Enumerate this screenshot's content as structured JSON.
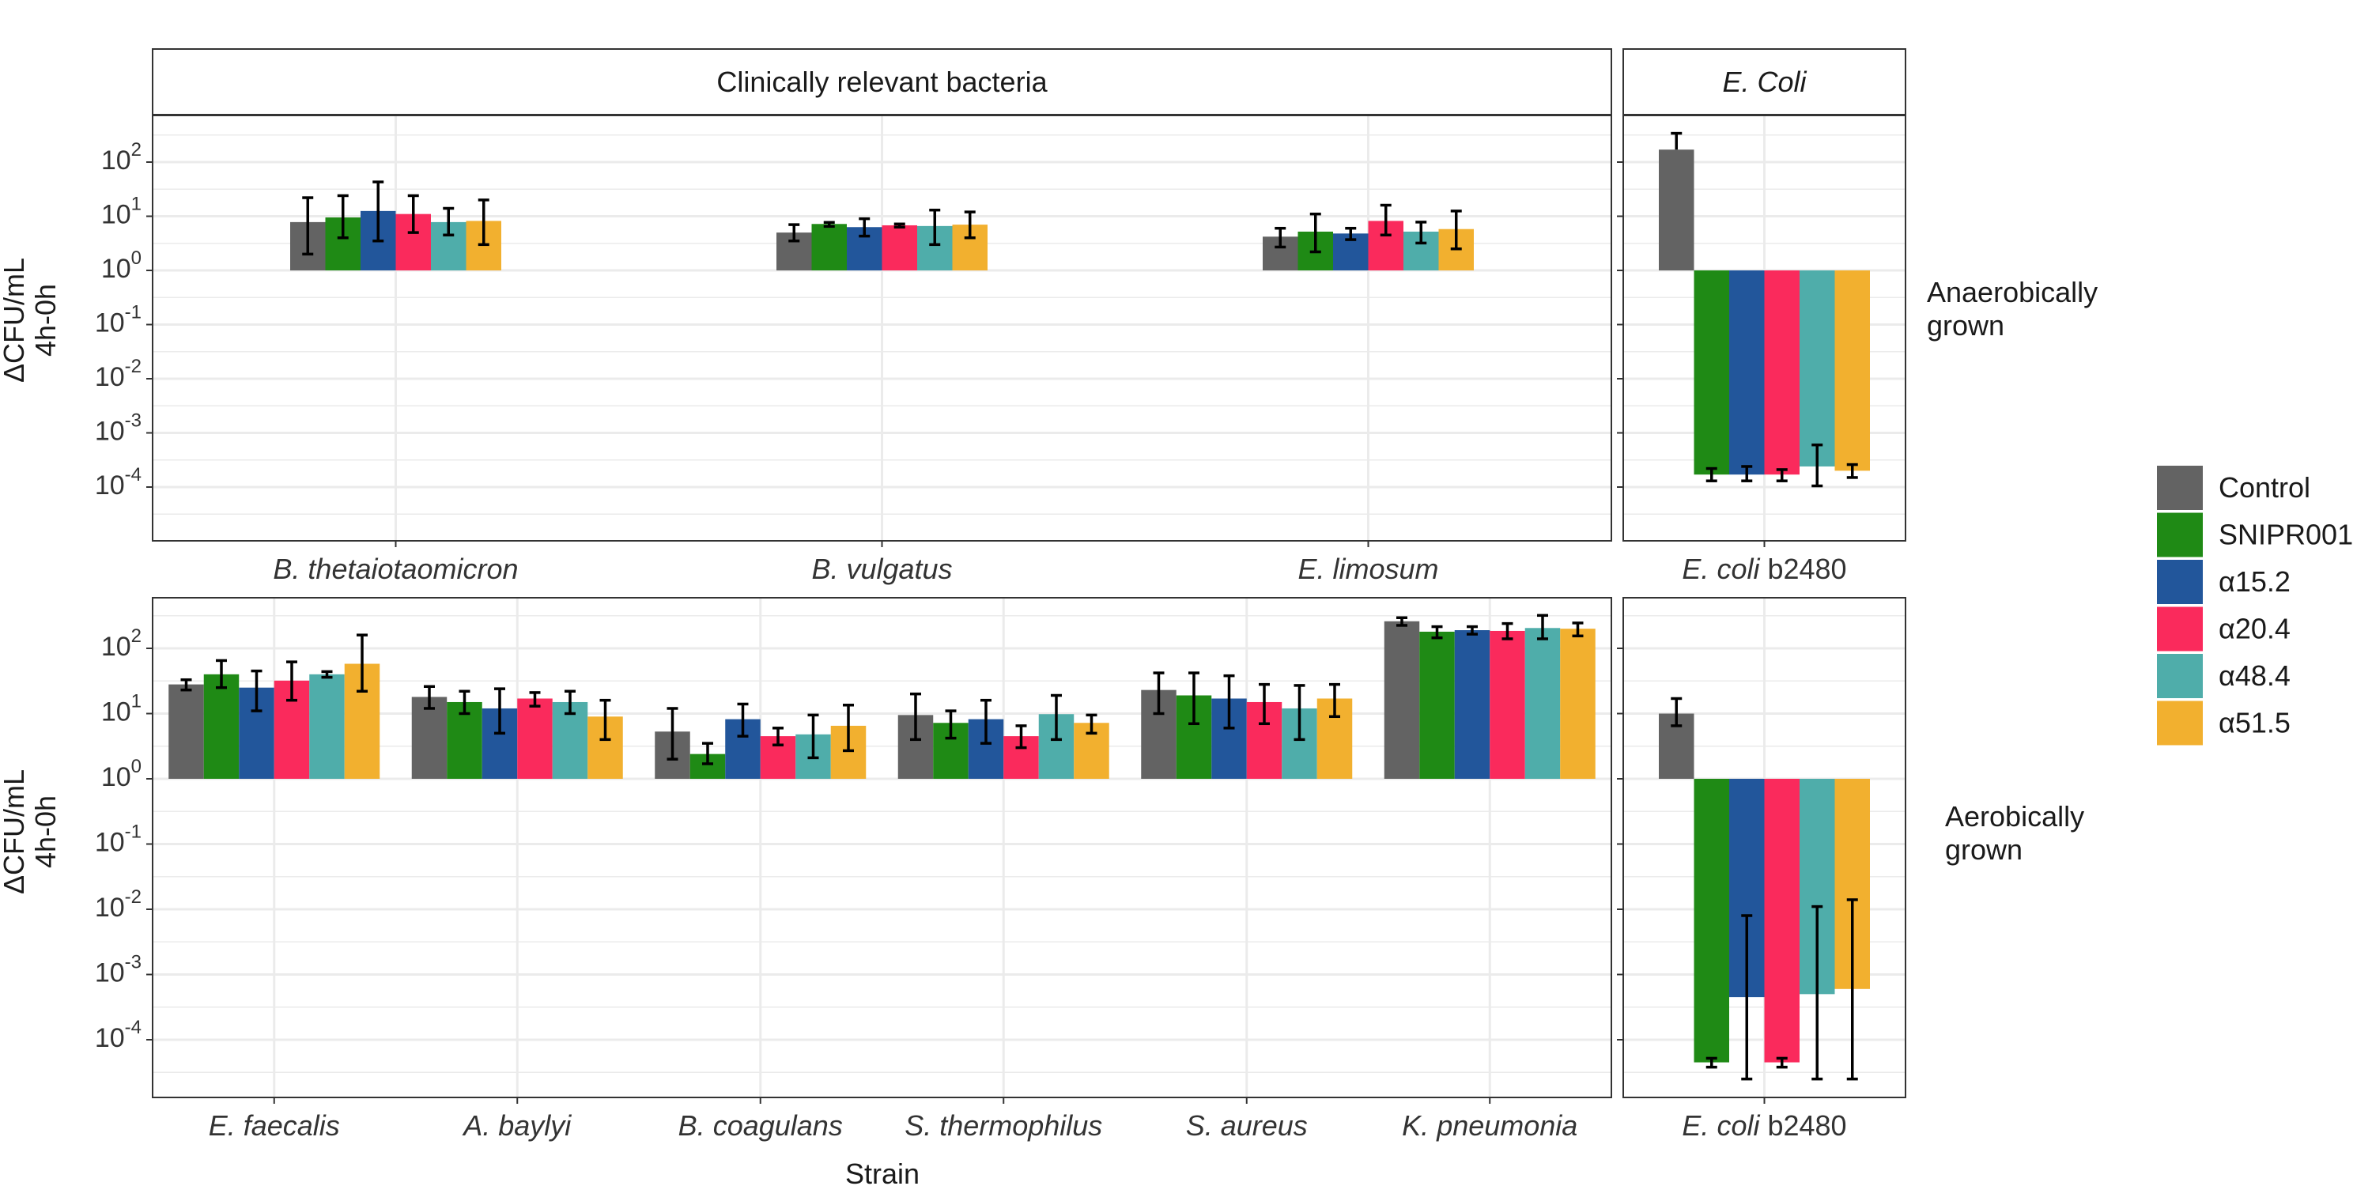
{
  "chart_data": {
    "type": "bar",
    "scale": "log10",
    "ylabel": [
      "ΔCFU/mL",
      "4h-0h"
    ],
    "xlabel": "Strain",
    "baseline": 1,
    "series": [
      {
        "name": "Control",
        "color": "#636363"
      },
      {
        "name": "SNIPR001",
        "color": "#1f8a15"
      },
      {
        "name": "α15.2",
        "color": "#22569b"
      },
      {
        "name": "α20.4",
        "color": "#fa2a5c"
      },
      {
        "name": "α48.4",
        "color": "#4fadaa"
      },
      {
        "name": "α51.5",
        "color": "#f2b02f"
      }
    ],
    "rows": [
      {
        "row_label": [
          "Anaerobically",
          "grown"
        ],
        "panels": [
          {
            "strip": "Clinically relevant bacteria",
            "strip_italic": false,
            "ylim": [
              1e-05,
              600
            ],
            "ytick_labels": [
              "10^2",
              "10^1",
              "10^0",
              "10^-1",
              "10^-2",
              "10^-3",
              "10^-4"
            ],
            "categories": [
              {
                "name": "B. thetaiotaomicron",
                "label_parts": [
                  {
                    "t": "B. thetaiotaomicron",
                    "i": true
                  }
                ],
                "values": [
                  7.8,
                  9.5,
                  12.5,
                  11,
                  7.8,
                  8.2
                ],
                "errors": [
                  [
                    2,
                    22
                  ],
                  [
                    4,
                    24
                  ],
                  [
                    3.5,
                    43
                  ],
                  [
                    5,
                    24
                  ],
                  [
                    4.5,
                    14
                  ],
                  [
                    3,
                    20
                  ]
                ]
              },
              {
                "name": "B. vulgatus",
                "label_parts": [
                  {
                    "t": "B. vulgatus",
                    "i": true
                  }
                ],
                "values": [
                  5,
                  7.2,
                  6.3,
                  6.8,
                  6.6,
                  7
                ],
                "errors": [
                  [
                    3.5,
                    7
                  ],
                  [
                    6.5,
                    7.7
                  ],
                  [
                    4.3,
                    9
                  ],
                  [
                    6.3,
                    7.2
                  ],
                  [
                    3,
                    13
                  ],
                  [
                    4,
                    12
                  ]
                ]
              },
              {
                "name": "E. limosum",
                "label_parts": [
                  {
                    "t": "E. limosum",
                    "i": true
                  }
                ],
                "values": [
                  4.2,
                  5.2,
                  4.8,
                  8.2,
                  5.2,
                  5.8
                ],
                "errors": [
                  [
                    2.7,
                    6
                  ],
                  [
                    2.2,
                    11
                  ],
                  [
                    3.7,
                    6
                  ],
                  [
                    4.5,
                    16
                  ],
                  [
                    3.2,
                    7.8
                  ],
                  [
                    2.5,
                    12.5
                  ]
                ]
              }
            ]
          },
          {
            "strip": "E. Coli",
            "strip_italic": true,
            "ylim": [
              1e-05,
              600
            ],
            "ytick_labels": [],
            "categories": [
              {
                "name": "E. coli b2480",
                "label_parts": [
                  {
                    "t": "E. coli",
                    "i": true
                  },
                  {
                    "t": " b2480",
                    "i": false
                  }
                ],
                "values": [
                  170,
                  0.00017,
                  0.00017,
                  0.00017,
                  0.00024,
                  0.0002
                ],
                "errors": [
                  [
                    null,
                    340
                  ],
                  [
                    0.00013,
                    0.00022
                  ],
                  [
                    0.00013,
                    0.00024
                  ],
                  [
                    0.00013,
                    0.00021
                  ],
                  [
                    0.000105,
                    0.0006
                  ],
                  [
                    0.00015,
                    0.00026
                  ]
                ]
              }
            ]
          }
        ]
      },
      {
        "row_label": [
          "Aerobically",
          "grown"
        ],
        "panels": [
          {
            "strip": "",
            "strip_italic": false,
            "ylim": [
              1e-05,
              600
            ],
            "ytick_labels": [
              "10^2",
              "10^1",
              "10^0",
              "10^-1",
              "10^-2",
              "10^-3",
              "10^-4"
            ],
            "categories": [
              {
                "name": "E. faecalis",
                "label_parts": [
                  {
                    "t": "E. faecalis",
                    "i": true
                  }
                ],
                "values": [
                  28,
                  40,
                  25,
                  32,
                  40,
                  58
                ],
                "errors": [
                  [
                    23,
                    33
                  ],
                  [
                    25,
                    65
                  ],
                  [
                    11,
                    45
                  ],
                  [
                    16,
                    62
                  ],
                  [
                    36,
                    44
                  ],
                  [
                    22,
                    160
                  ]
                ]
              },
              {
                "name": "A. baylyi",
                "label_parts": [
                  {
                    "t": "A. baylyi",
                    "i": true
                  }
                ],
                "values": [
                  18,
                  15,
                  12,
                  17,
                  15,
                  9
                ],
                "errors": [
                  [
                    12,
                    26
                  ],
                  [
                    10,
                    22
                  ],
                  [
                    5,
                    24
                  ],
                  [
                    13,
                    21
                  ],
                  [
                    10,
                    22
                  ],
                  [
                    4,
                    16
                  ]
                ]
              },
              {
                "name": "B. coagulans",
                "label_parts": [
                  {
                    "t": "B. coagulans",
                    "i": true
                  }
                ],
                "values": [
                  5.3,
                  2.4,
                  8.2,
                  4.5,
                  4.8,
                  6.5
                ],
                "errors": [
                  [
                    2,
                    12
                  ],
                  [
                    1.7,
                    3.5
                  ],
                  [
                    4.5,
                    14
                  ],
                  [
                    3.3,
                    6
                  ],
                  [
                    2.1,
                    9.5
                  ],
                  [
                    2.7,
                    13.5
                  ]
                ]
              },
              {
                "name": "S. thermophilus",
                "label_parts": [
                  {
                    "t": "S. thermophilus",
                    "i": true
                  }
                ],
                "values": [
                  9.5,
                  7.2,
                  8.2,
                  4.5,
                  9.8,
                  7.2
                ],
                "errors": [
                  [
                    4,
                    20
                  ],
                  [
                    4.2,
                    11
                  ],
                  [
                    3.5,
                    16
                  ],
                  [
                    3,
                    6.5
                  ],
                  [
                    4,
                    19
                  ],
                  [
                    5,
                    9.5
                  ]
                ]
              },
              {
                "name": "S. aureus",
                "label_parts": [
                  {
                    "t": "S. aureus",
                    "i": true
                  }
                ],
                "values": [
                  23,
                  19,
                  17,
                  15,
                  12,
                  17
                ],
                "errors": [
                  [
                    10,
                    42
                  ],
                  [
                    7,
                    42
                  ],
                  [
                    6,
                    38
                  ],
                  [
                    7,
                    28
                  ],
                  [
                    4,
                    27
                  ],
                  [
                    9,
                    28
                  ]
                ]
              },
              {
                "name": "K. pneumonia",
                "label_parts": [
                  {
                    "t": "K. pneumonia",
                    "i": true
                  }
                ],
                "values": [
                  260,
                  180,
                  190,
                  185,
                  205,
                  200
                ],
                "errors": [
                  [
                    225,
                    295
                  ],
                  [
                    145,
                    215
                  ],
                  [
                    165,
                    215
                  ],
                  [
                    140,
                    240
                  ],
                  [
                    140,
                    320
                  ],
                  [
                    155,
                    245
                  ]
                ]
              }
            ]
          },
          {
            "strip": "",
            "strip_italic": false,
            "ylim": [
              1e-05,
              600
            ],
            "ytick_labels": [],
            "categories": [
              {
                "name": "E. coli b2480",
                "label_parts": [
                  {
                    "t": "E. coli",
                    "i": true
                  },
                  {
                    "t": " b2480",
                    "i": false
                  }
                ],
                "values": [
                  10,
                  4.5e-05,
                  0.00045,
                  4.5e-05,
                  0.0005,
                  0.0006
                ],
                "errors": [
                  [
                    6.5,
                    17
                  ],
                  [
                    3.8e-05,
                    5.2e-05
                  ],
                  [
                    2.5e-05,
                    0.008
                  ],
                  [
                    3.8e-05,
                    5.2e-05
                  ],
                  [
                    2.5e-05,
                    0.011
                  ],
                  [
                    2.5e-05,
                    0.014
                  ]
                ]
              }
            ]
          }
        ]
      }
    ]
  }
}
